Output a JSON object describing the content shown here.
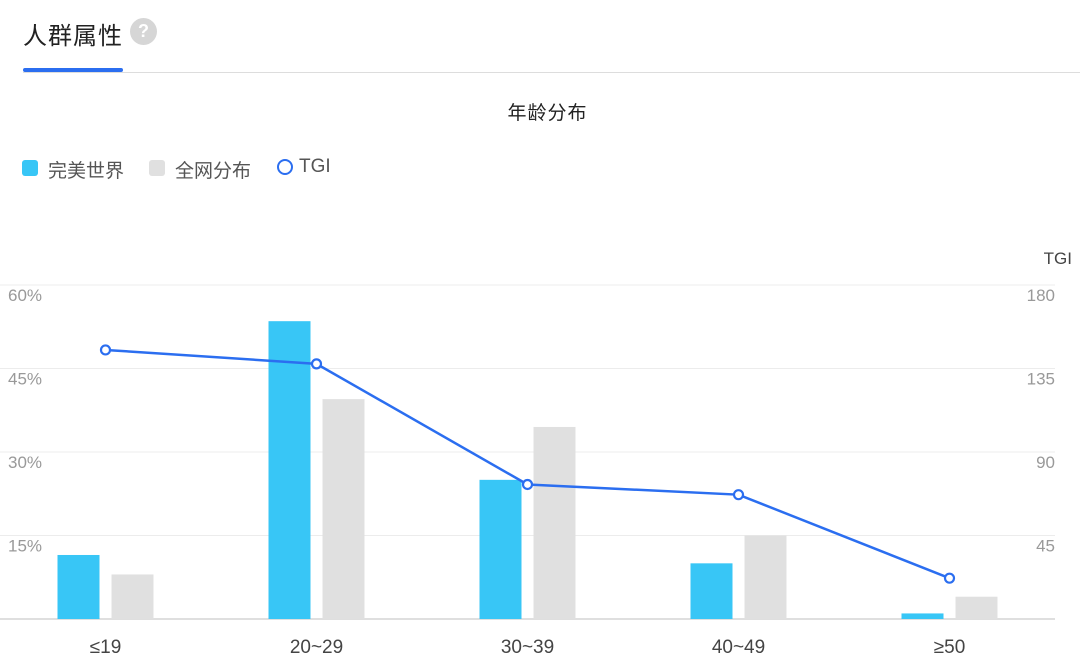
{
  "header": {
    "tab_title": "人群属性",
    "help_icon_glyph": "?"
  },
  "colors": {
    "accent": "#2b6ef0",
    "series_primary": "#38c6f6",
    "series_secondary": "#e0e0e0",
    "tgi_line": "#2b6ef0"
  },
  "chart_data": {
    "type": "bar",
    "title": "年龄分布",
    "categories": [
      "≤19",
      "20~29",
      "30~39",
      "40~49",
      "≥50"
    ],
    "series": [
      {
        "name": "完美世界",
        "type": "bar",
        "axis": "left",
        "values": [
          11.5,
          53.5,
          25,
          10,
          1
        ]
      },
      {
        "name": "全网分布",
        "type": "bar",
        "axis": "left",
        "values": [
          8,
          39.5,
          34.5,
          15,
          4
        ]
      },
      {
        "name": "TGI",
        "type": "line",
        "axis": "right",
        "values": [
          145,
          137.5,
          72.5,
          67,
          22
        ]
      }
    ],
    "y_left": {
      "ticks": [
        "60%",
        "45%",
        "30%",
        "15%"
      ],
      "ylim": [
        0,
        60
      ]
    },
    "y_right": {
      "label": "TGI",
      "ticks": [
        "180",
        "135",
        "90",
        "45"
      ],
      "ylim": [
        0,
        180
      ]
    },
    "grid": true,
    "legend": "top-left"
  }
}
